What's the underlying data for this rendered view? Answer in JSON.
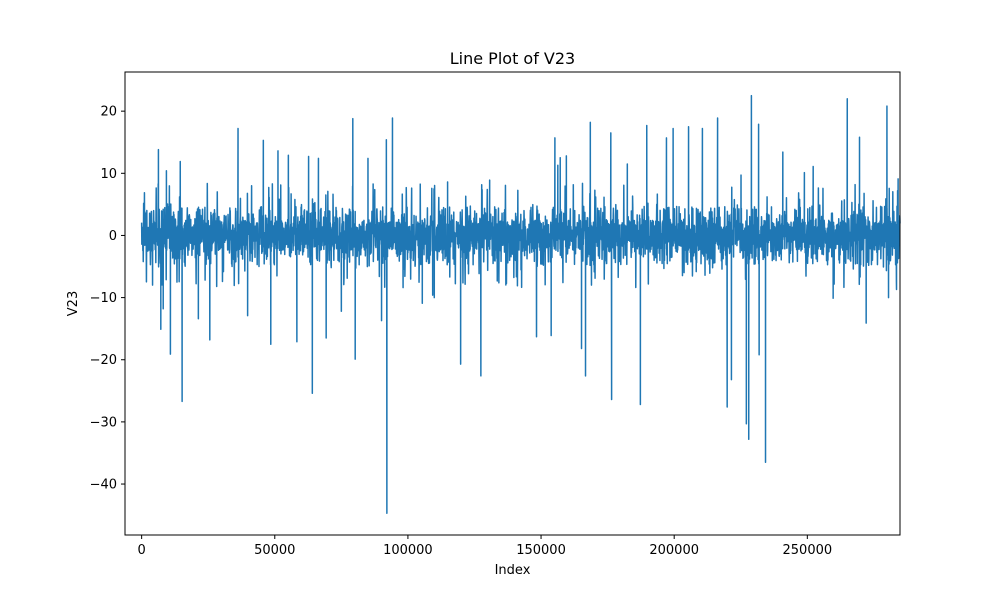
{
  "chart_data": {
    "type": "line",
    "title": "Line Plot of V23",
    "xlabel": "Index",
    "ylabel": "V23",
    "xlim": [
      -6250,
      284806
    ],
    "ylim": [
      -48.2,
      26.3
    ],
    "x_ticks": [
      0,
      50000,
      100000,
      150000,
      200000,
      250000
    ],
    "x_tick_labels": [
      "0",
      "50000",
      "100000",
      "150000",
      "200000",
      "250000"
    ],
    "y_ticks": [
      20,
      10,
      0,
      -10,
      -20,
      -30,
      -40
    ],
    "y_tick_labels": [
      "20",
      "10",
      "0",
      "−10",
      "−20",
      "−30",
      "−40"
    ],
    "grid": false,
    "line_color": "#1f77b4",
    "series": [
      {
        "x_start": 0,
        "x_end": 284806,
        "baseline": 0,
        "typical_band": [
          -3.5,
          3.5
        ],
        "peaks": [
          [
            1200,
            3.8
          ],
          [
            4100,
            -8.0
          ],
          [
            6300,
            13.8
          ],
          [
            7200,
            -15.1
          ],
          [
            8100,
            -11.8
          ],
          [
            9300,
            10.4
          ],
          [
            10800,
            -19.1
          ],
          [
            14500,
            11.9
          ],
          [
            15200,
            -26.7
          ],
          [
            21300,
            -13.4
          ],
          [
            25600,
            -16.8
          ],
          [
            36200,
            17.2
          ],
          [
            39800,
            -12.9
          ],
          [
            45700,
            15.3
          ],
          [
            48500,
            -17.5
          ],
          [
            51200,
            13.6
          ],
          [
            55100,
            12.9
          ],
          [
            58300,
            -17.1
          ],
          [
            62700,
            12.7
          ],
          [
            64100,
            -25.4
          ],
          [
            66400,
            12.4
          ],
          [
            69300,
            -16.5
          ],
          [
            75000,
            -12.2
          ],
          [
            79300,
            18.8
          ],
          [
            80200,
            -19.9
          ],
          [
            85000,
            12.4
          ],
          [
            90100,
            -13.7
          ],
          [
            91900,
            15.4
          ],
          [
            92100,
            -44.7
          ],
          [
            94200,
            18.9
          ],
          [
            105400,
            -10.9
          ],
          [
            109300,
            -9.6
          ],
          [
            109800,
            7.5
          ],
          [
            114900,
            8.6
          ],
          [
            109900,
            -10.0
          ],
          [
            127400,
            -22.6
          ],
          [
            130700,
            8.9
          ],
          [
            119800,
            -20.7
          ],
          [
            148300,
            -16.3
          ],
          [
            155200,
            15.7
          ],
          [
            153800,
            -16.1
          ],
          [
            156300,
            11.3
          ],
          [
            157200,
            12.5
          ],
          [
            159500,
            12.8
          ],
          [
            165200,
            -18.2
          ],
          [
            166700,
            -22.6
          ],
          [
            168500,
            18.2
          ],
          [
            176500,
            -26.4
          ],
          [
            176200,
            16.5
          ],
          [
            182400,
            11.5
          ],
          [
            187300,
            -27.2
          ],
          [
            189700,
            17.7
          ],
          [
            197100,
            15.7
          ],
          [
            199600,
            17.2
          ],
          [
            205400,
            17.5
          ],
          [
            210600,
            17.2
          ],
          [
            216300,
            18.9
          ],
          [
            219900,
            -27.6
          ],
          [
            221500,
            -23.2
          ],
          [
            225100,
            9.7
          ],
          [
            227100,
            -30.3
          ],
          [
            228000,
            -32.8
          ],
          [
            229000,
            22.5
          ],
          [
            231700,
            17.9
          ],
          [
            231900,
            -19.2
          ],
          [
            234300,
            -36.5
          ],
          [
            240800,
            13.4
          ],
          [
            248900,
            10.1
          ],
          [
            252200,
            11.1
          ],
          [
            259700,
            -10.1
          ],
          [
            265000,
            22.0
          ],
          [
            269600,
            15.8
          ],
          [
            272100,
            -14.1
          ],
          [
            279900,
            20.8
          ],
          [
            283500,
            -8.7
          ],
          [
            284100,
            9.1
          ],
          [
            283900,
            7.2
          ],
          [
            280500,
            -10.0
          ]
        ]
      }
    ]
  }
}
